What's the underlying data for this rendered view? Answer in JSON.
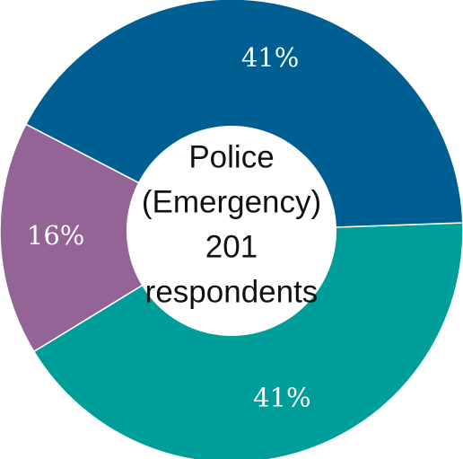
{
  "chart_data": {
    "type": "pie",
    "style": "donut",
    "center_lines": [
      "Police",
      "(Emergency)",
      "201",
      "respondents"
    ],
    "slices": [
      {
        "value": 41,
        "label": "41%",
        "color": "#009e9a"
      },
      {
        "value": 16,
        "label": "16%",
        "color": "#956497"
      },
      {
        "value": 41,
        "label": "41%",
        "color": "#005f92"
      }
    ],
    "legend": "none"
  }
}
